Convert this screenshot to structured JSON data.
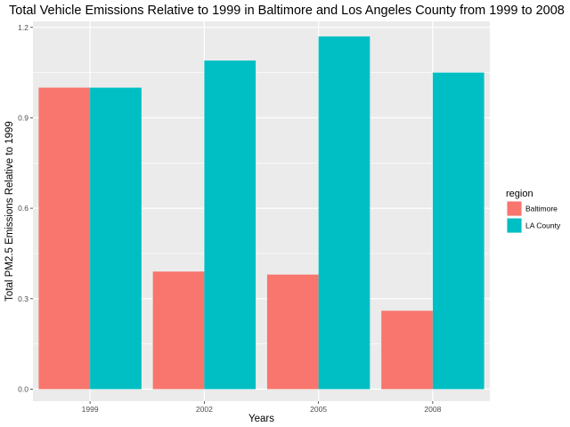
{
  "chart_data": {
    "type": "bar",
    "title": "Total Vehicle Emissions Relative to 1999 in Baltimore and Los Angeles County from 1999 to 2008",
    "xlabel": "Years",
    "ylabel": "Total PM2.5 Emissions Relative to 1999",
    "categories": [
      "1999",
      "2002",
      "2005",
      "2008"
    ],
    "series": [
      {
        "name": "Baltimore",
        "values": [
          1.0,
          0.39,
          0.38,
          0.26
        ],
        "color": "#F8766D"
      },
      {
        "name": "LA County",
        "values": [
          1.0,
          1.09,
          1.17,
          1.05
        ],
        "color": "#00BFC4"
      }
    ],
    "ylim": [
      -0.04,
      1.22
    ],
    "yticks": [
      0.0,
      0.3,
      0.6,
      0.9,
      1.2
    ],
    "ytick_labels": [
      "0.0",
      "0.3",
      "0.6",
      "0.9",
      "1.2"
    ],
    "grid": true,
    "legend": {
      "title": "region",
      "position": "right"
    },
    "panel_background": "#EBEBEB",
    "grid_color": "#FFFFFF"
  }
}
